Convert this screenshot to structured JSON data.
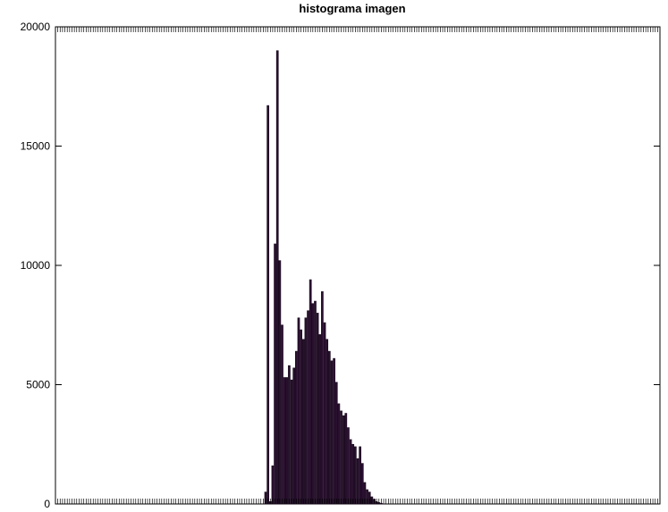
{
  "chart_data": {
    "type": "bar",
    "title": "histograma imagen",
    "xlabel": "",
    "ylabel": "",
    "ylim": [
      0,
      20000
    ],
    "xlim": [
      0,
      256
    ],
    "yticks": [
      0,
      5000,
      10000,
      15000,
      20000
    ],
    "yticklabels": [
      "0",
      "5000",
      "10000",
      "15000",
      "20000"
    ],
    "grid": false,
    "bar_color": "#2a1030",
    "x": [
      89,
      90,
      91,
      92,
      93,
      94,
      95,
      96,
      97,
      98,
      99,
      100,
      101,
      102,
      103,
      104,
      105,
      106,
      107,
      108,
      109,
      110,
      111,
      112,
      113,
      114,
      115,
      116,
      117,
      118,
      119,
      120,
      121,
      122,
      123,
      124,
      125,
      126,
      127,
      128,
      129,
      130,
      131,
      132,
      133,
      134,
      135,
      136,
      137,
      138
    ],
    "values": [
      500,
      16700,
      100,
      1600,
      10900,
      19000,
      10200,
      7500,
      5300,
      5300,
      5800,
      5200,
      5700,
      6400,
      7800,
      7300,
      6900,
      7800,
      8100,
      9400,
      8400,
      8500,
      8000,
      7100,
      8900,
      7600,
      6900,
      6400,
      6000,
      6100,
      5100,
      4200,
      3900,
      3700,
      3800,
      3200,
      2700,
      2500,
      2400,
      1900,
      2400,
      1700,
      900,
      600,
      500,
      300,
      200,
      100,
      60,
      30
    ]
  }
}
